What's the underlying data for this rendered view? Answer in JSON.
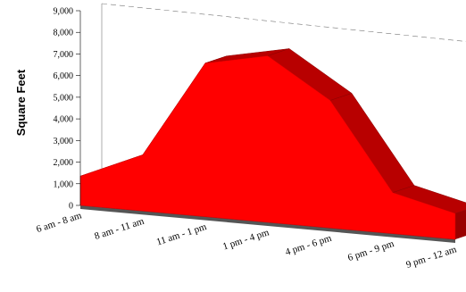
{
  "chart_data": {
    "type": "area",
    "ylabel": "Square Feet",
    "xlabel": "",
    "categories": [
      "6 am - 8 am",
      "8 am - 11 am",
      "11 am - 1 pm",
      "1 pm - 4 pm",
      "4 pm - 6 pm",
      "6 pm - 9 pm",
      "9 pm - 12 am"
    ],
    "yticks": [
      "0",
      "1,000",
      "2,000",
      "3,000",
      "4,000",
      "5,000",
      "6,000",
      "7,000",
      "8,000",
      "9,000"
    ],
    "series": [
      {
        "values": [
          1350,
          2600,
          7100,
          7700,
          5900,
          1900,
          1200
        ]
      }
    ],
    "ylim": [
      0,
      9000
    ],
    "grid": false,
    "three_d": true,
    "colors": {
      "fill": "#ff0000",
      "side": "#b80000",
      "floor": "#9a9a9a",
      "floor_edge": "#555555"
    }
  }
}
